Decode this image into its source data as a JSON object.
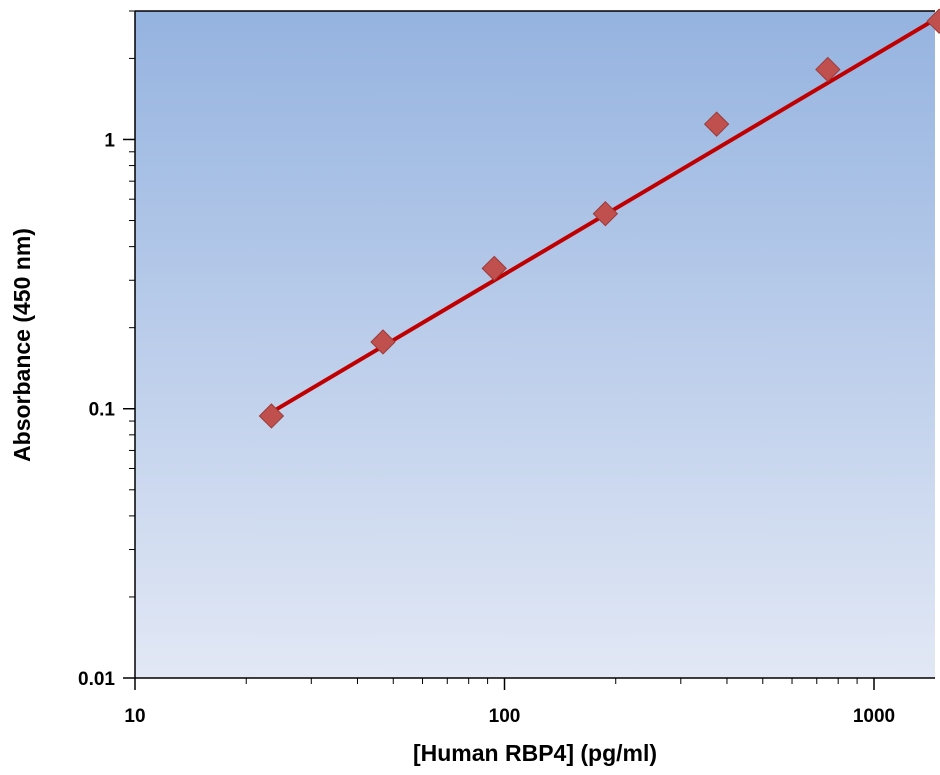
{
  "chart_data": {
    "type": "scatter",
    "title": "",
    "xlabel": "[Human RBP4] (pg/ml)",
    "ylabel": "Absorbance (450 nm)",
    "x_scale": "log",
    "y_scale": "log",
    "xlim": [
      10,
      1500
    ],
    "ylim": [
      0.01,
      3
    ],
    "x_ticks": [
      {
        "value": 10,
        "label": "10"
      },
      {
        "value": 100,
        "label": "100"
      },
      {
        "value": 1000,
        "label": "1000"
      }
    ],
    "y_ticks": [
      {
        "value": 0.01,
        "label": "0.01"
      },
      {
        "value": 0.1,
        "label": "0.1"
      },
      {
        "value": 1,
        "label": "1"
      }
    ],
    "grid": false,
    "legend": "none",
    "series": [
      {
        "points": [
          {
            "x": 23.4,
            "y": 0.094
          },
          {
            "x": 46.9,
            "y": 0.177
          },
          {
            "x": 93.8,
            "y": 0.332
          },
          {
            "x": 187.5,
            "y": 0.53
          },
          {
            "x": 375,
            "y": 1.14
          },
          {
            "x": 750,
            "y": 1.82
          },
          {
            "x": 1500,
            "y": 2.75
          }
        ],
        "marker": "diamond",
        "color": "#c0504d"
      }
    ],
    "fit_line": {
      "type": "power",
      "x_range": [
        23.4,
        1500
      ],
      "y_range": [
        0.097,
        2.85
      ],
      "color": "#c00000"
    },
    "colors": {
      "plot_bg_top": "#95b3e0",
      "plot_bg_bottom": "#e2e8f5",
      "marker_fill": "#c0504d",
      "marker_edge": "#9b3b39",
      "fit_line": "#c00000"
    }
  }
}
